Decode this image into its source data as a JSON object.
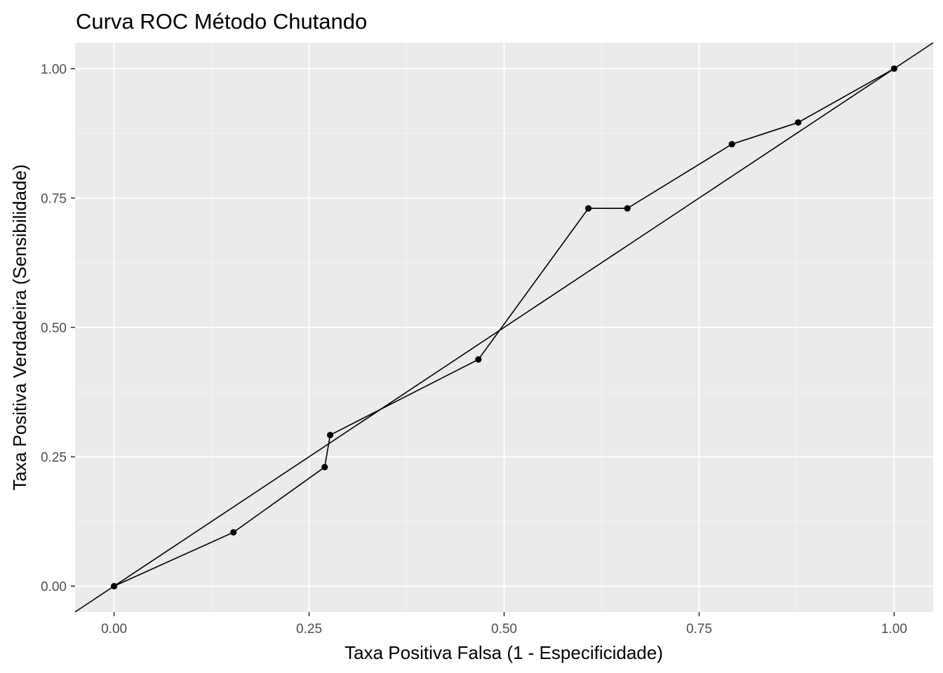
{
  "chart_data": {
    "type": "line",
    "title": "Curva ROC Método Chutando",
    "xlabel": "Taxa Positiva Falsa (1 - Especificidade)",
    "ylabel": "Taxa Positiva Verdadeira (Sensibilidade)",
    "xlim": [
      -0.05,
      1.05
    ],
    "ylim": [
      -0.05,
      1.05
    ],
    "x_ticks": [
      0,
      0.25,
      0.5,
      0.75,
      1
    ],
    "x_tick_labels": [
      "0.00",
      "0.25",
      "0.50",
      "0.75",
      "1.00"
    ],
    "y_ticks": [
      0,
      0.25,
      0.5,
      0.75,
      1
    ],
    "y_tick_labels": [
      "0.00",
      "0.25",
      "0.50",
      "0.75",
      "1.00"
    ],
    "grid": true,
    "series": [
      {
        "x": [
          0,
          0.153,
          0.27,
          0.277,
          0.467,
          0.608,
          0.658,
          0.792,
          0.877,
          1.0
        ],
        "y": [
          0,
          0.104,
          0.23,
          0.292,
          0.438,
          0.73,
          0.73,
          0.854,
          0.896,
          1.0
        ],
        "markers": true
      }
    ],
    "reference_line": {
      "slope": 1,
      "intercept": 0
    },
    "colors": {
      "panel_background": "#ebebeb",
      "grid_major": "#ffffff",
      "grid_minor": "#f5f5f5",
      "line": "#000000",
      "point": "#000000",
      "tick_label": "#4d4d4d",
      "tick_mark": "#333333"
    }
  }
}
